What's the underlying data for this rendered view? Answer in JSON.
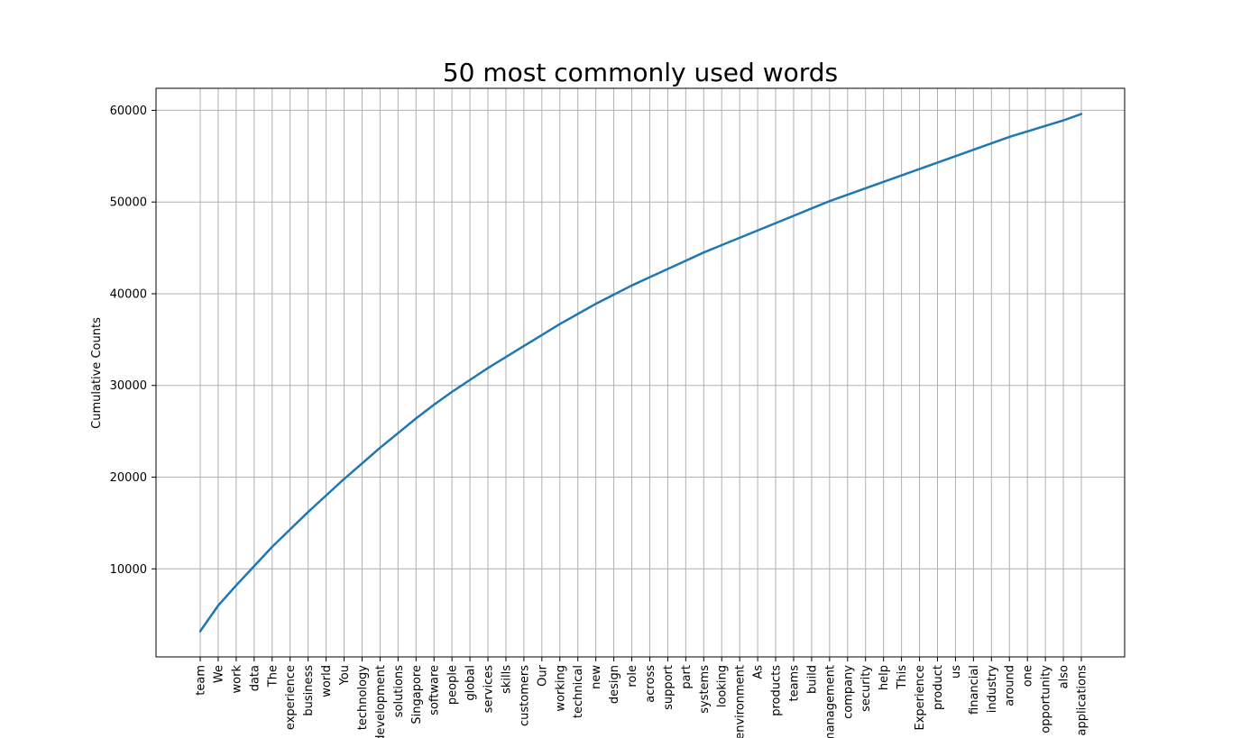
{
  "chart_data": {
    "type": "line",
    "title": "50 most commonly used words",
    "xlabel": "",
    "ylabel": "Cumulative Counts",
    "grid": true,
    "legend": "none",
    "series_color": "#1f77b4",
    "ylim": [
      400,
      62400
    ],
    "yticks": [
      10000,
      20000,
      30000,
      40000,
      50000,
      60000
    ],
    "categories": [
      "team",
      "We",
      "work",
      "data",
      "The",
      "experience",
      "business",
      "world",
      "You",
      "technology",
      "development",
      "solutions",
      "Singapore",
      "software",
      "people",
      "global",
      "services",
      "skills",
      "customers",
      "Our",
      "working",
      "technical",
      "new",
      "design",
      "role",
      "across",
      "support",
      "part",
      "systems",
      "looking",
      "environment",
      "As",
      "products",
      "teams",
      "build",
      "management",
      "company",
      "security",
      "help",
      "This",
      "Experience",
      "product",
      "us",
      "financial",
      "industry",
      "around",
      "one",
      "opportunity",
      "also",
      "applications"
    ],
    "values": [
      3200,
      6000,
      8200,
      10300,
      12400,
      14300,
      16200,
      18000,
      19800,
      21500,
      23200,
      24800,
      26400,
      27900,
      29300,
      30600,
      31900,
      33100,
      34300,
      35500,
      36700,
      37800,
      38900,
      39900,
      40900,
      41800,
      42700,
      43600,
      44500,
      45300,
      46100,
      46900,
      47700,
      48500,
      49300,
      50100,
      50800,
      51500,
      52200,
      52900,
      53600,
      54300,
      55000,
      55700,
      56400,
      57100,
      57700,
      58300,
      58900,
      59600
    ]
  }
}
